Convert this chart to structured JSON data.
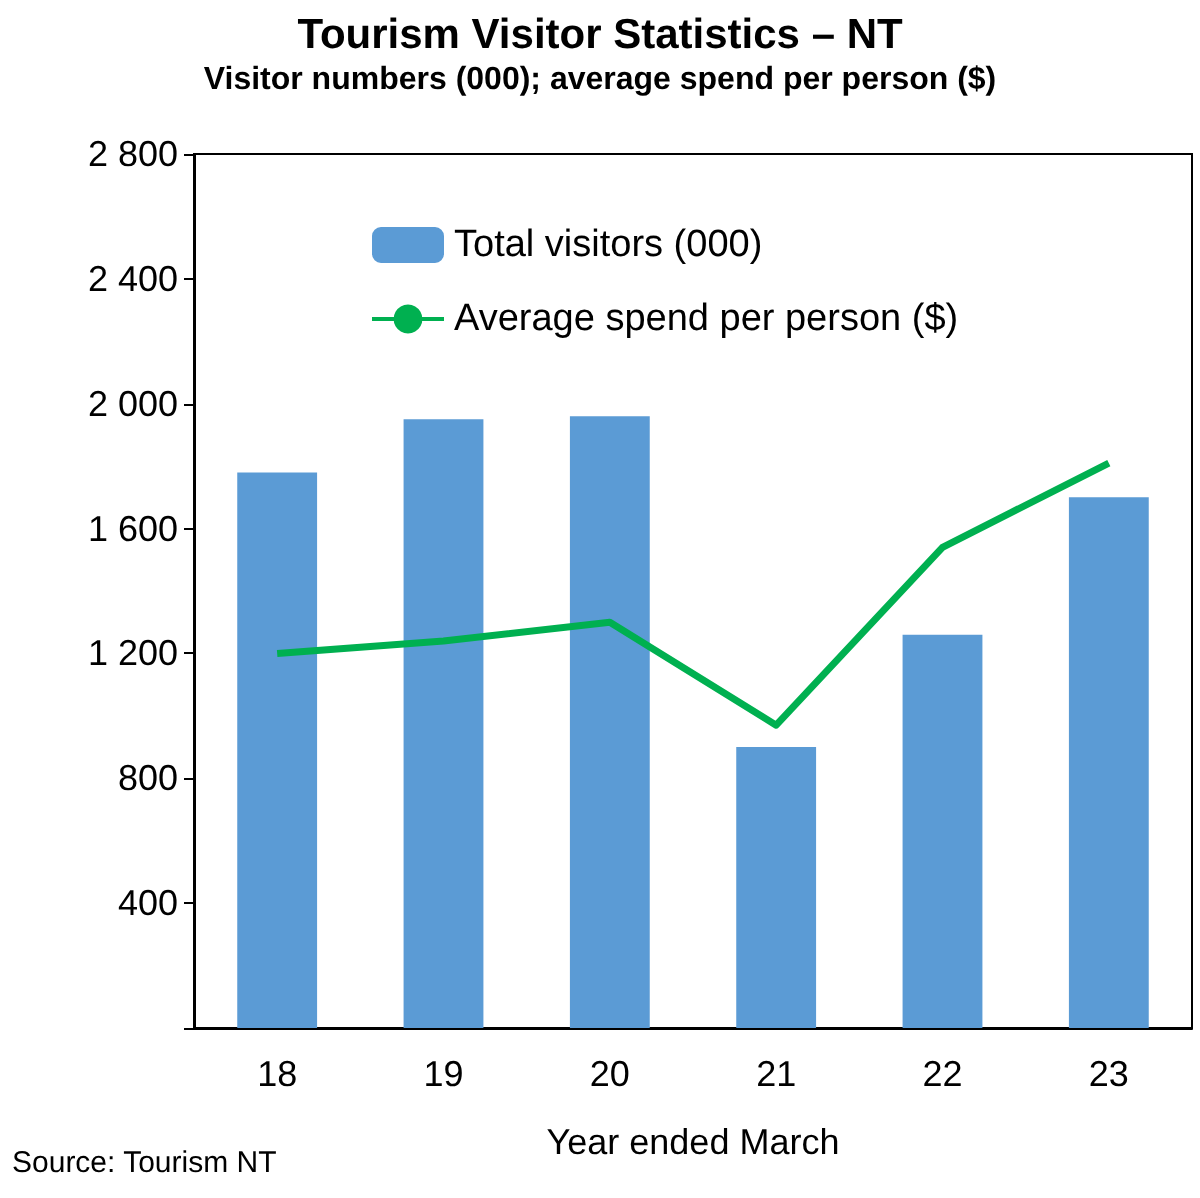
{
  "chart_data": {
    "type": "bar",
    "title": "Tourism Visitor Statistics – NT",
    "subtitle": "Visitor numbers (000); average spend per person ($)",
    "xlabel": "Year ended March",
    "categories": [
      "18",
      "19",
      "20",
      "21",
      "22",
      "23"
    ],
    "series": [
      {
        "name": "Total visitors (000)",
        "color": "#5b9bd5",
        "values": [
          1780,
          1950,
          1960,
          900,
          1260,
          1700
        ]
      },
      {
        "name": "Average spend per person ($)",
        "type": "line",
        "color": "#00b050",
        "values": [
          1200,
          1240,
          1300,
          970,
          1540,
          1810
        ]
      }
    ],
    "ylim": [
      0,
      2800
    ],
    "yticks": [
      {
        "value": 0,
        "label": null
      },
      {
        "value": 400,
        "label": "400"
      },
      {
        "value": 800,
        "label": "800"
      },
      {
        "value": 1200,
        "label": "1 200"
      },
      {
        "value": 1600,
        "label": "1 600"
      },
      {
        "value": 2000,
        "label": "2 000"
      },
      {
        "value": 2400,
        "label": "2 400"
      },
      {
        "value": 2800,
        "label": "2 800"
      }
    ],
    "grid": false,
    "legend": "top",
    "marker": "none",
    "annotations": [
      "Source: Tourism NT"
    ]
  }
}
